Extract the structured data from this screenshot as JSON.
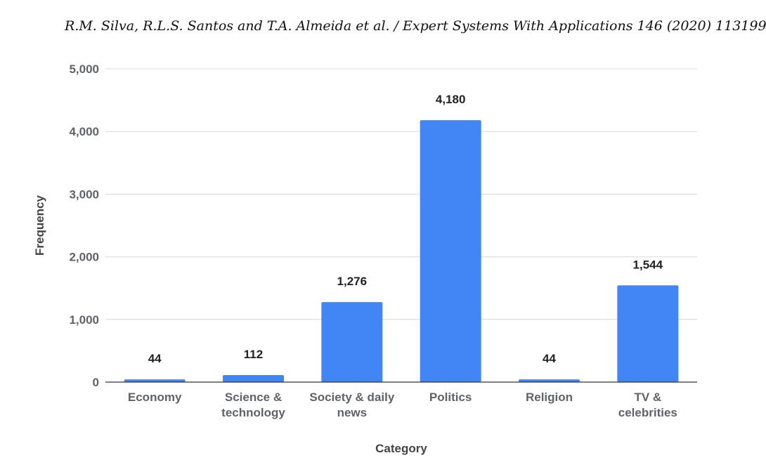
{
  "header": {
    "running_head": "R.M. Silva, R.L.S. Santos and T.A. Almeida et al. / Expert Systems With Applications 146 (2020) 113199"
  },
  "chart_data": {
    "type": "bar",
    "title": "",
    "xlabel": "Category",
    "ylabel": "Frequency",
    "categories": [
      [
        "Economy"
      ],
      [
        "Science &",
        "technology"
      ],
      [
        "Society & daily",
        "news"
      ],
      [
        "Politics"
      ],
      [
        "Religion"
      ],
      [
        "TV &",
        "celebrities"
      ]
    ],
    "values": [
      44,
      112,
      1276,
      4180,
      44,
      1544
    ],
    "value_labels": [
      "44",
      "112",
      "1,276",
      "4,180",
      "44",
      "1,544"
    ],
    "ylim": [
      0,
      5000
    ],
    "yticks": [
      0,
      1000,
      2000,
      3000,
      4000,
      5000
    ],
    "ytick_labels": [
      "0",
      "1,000",
      "2,000",
      "3,000",
      "4,000",
      "5,000"
    ],
    "grid": true,
    "legend": "none",
    "colors": {
      "bar": "#4285f4",
      "grid": "#d9d9d9",
      "axis": "#333333"
    }
  }
}
